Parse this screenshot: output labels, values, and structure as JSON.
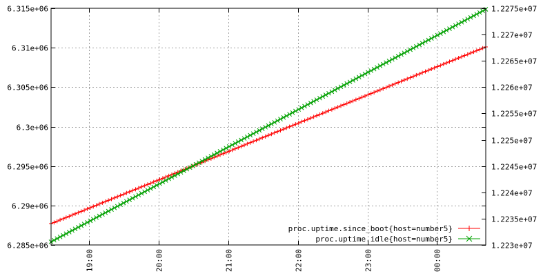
{
  "chart_data": {
    "type": "line",
    "title": "",
    "xlabel": "",
    "ylabel": "",
    "y2label": "",
    "grid": true,
    "legend_position": "bottom-right",
    "x_ticks": [
      "19:00",
      "20:00",
      "21:00",
      "22:00",
      "23:00",
      "00:00"
    ],
    "x_tick_hours": [
      19,
      20,
      21,
      22,
      23,
      24
    ],
    "xlim_hours": [
      18.45,
      24.7
    ],
    "y_left": {
      "ticks": [
        "6.285e+06",
        "6.29e+06",
        "6.295e+06",
        "6.3e+06",
        "6.305e+06",
        "6.31e+06",
        "6.315e+06"
      ],
      "tick_values": [
        6285000,
        6290000,
        6295000,
        6300000,
        6305000,
        6310000,
        6315000
      ],
      "ylim": [
        6285000,
        6315000
      ]
    },
    "y_right": {
      "ticks": [
        "1.223e+07",
        "1.2235e+07",
        "1.224e+07",
        "1.2245e+07",
        "1.225e+07",
        "1.2255e+07",
        "1.226e+07",
        "1.2265e+07",
        "1.227e+07",
        "1.2275e+07"
      ],
      "tick_values": [
        12230000,
        12235000,
        12240000,
        12245000,
        12250000,
        12255000,
        12260000,
        12265000,
        12270000,
        12275000
      ],
      "ylim": [
        12230000,
        12275000
      ]
    },
    "series": [
      {
        "name": "proc.uptime.since_boot{host=number5}",
        "axis": "left",
        "color": "#ff0000",
        "marker": "plus",
        "start": {
          "x_hour": 18.45,
          "y": 6287700
        },
        "end": {
          "x_hour": 24.7,
          "y": 6310100
        },
        "points": 145
      },
      {
        "name": "proc.uptime.idle{host=number5}",
        "axis": "right",
        "color": "#00a000",
        "marker": "cross",
        "start": {
          "x_hour": 18.45,
          "y": 12230600
        },
        "end": {
          "x_hour": 24.7,
          "y": 12274800
        },
        "points": 145
      }
    ]
  }
}
